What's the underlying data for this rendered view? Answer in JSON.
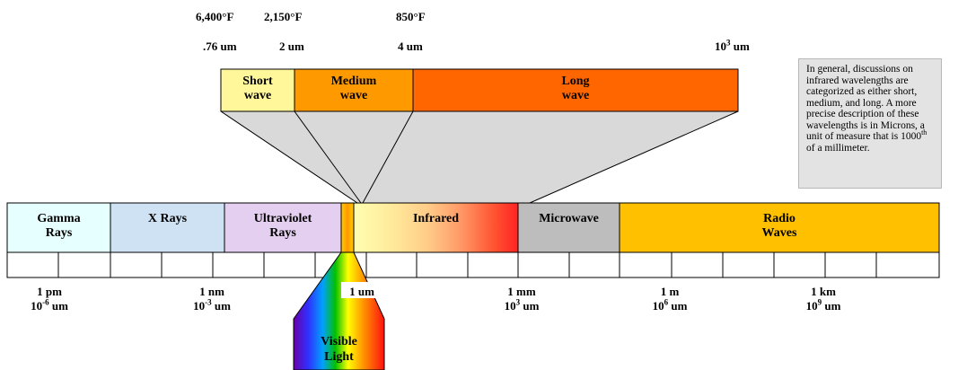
{
  "temperatures": {
    "t1": "6,400°F",
    "t2": "2,150°F",
    "t3": "850°F"
  },
  "wavelength_top": {
    "w1": ".76 um",
    "w2": "2 um",
    "w3": "4 um",
    "w4_base": "10",
    "w4_exp": "3",
    "w4_unit": " um"
  },
  "ir_bands": {
    "short": {
      "line1": "Short",
      "line2": "wave",
      "color": "#fff79a"
    },
    "medium": {
      "line1": "Medium",
      "line2": "wave",
      "color": "#ff9900"
    },
    "long": {
      "line1": "Long",
      "line2": "wave",
      "color": "#ff6600"
    }
  },
  "note": "In general, discussions on infrared wavelengths are categorized as either short, medium, and long.  A more precise description of these wavelengths is in Microns, a unit of measure that is 1000th of a millimeter.",
  "note_parts": {
    "before": "In general, discussions on infrared wavelengths are categorized as either short, medium, and long.  A more precise description of these wavelengths is in Microns, a unit of measure that is 1000",
    "sup": "th",
    "after": " of a millimeter."
  },
  "spectrum": {
    "gamma": {
      "line1": "Gamma",
      "line2": "Rays",
      "color": "#e6ffff"
    },
    "xrays": {
      "line1": "X Rays",
      "color": "#cfe2f3"
    },
    "uv": {
      "line1": "Ultraviolet",
      "line2": "Rays",
      "color": "#e4cff0"
    },
    "infrared": {
      "line1": "Infrared"
    },
    "microwave": {
      "line1": "Microwave",
      "color": "#bdbdbd"
    },
    "radio": {
      "line1": "Radio",
      "line2": "Waves",
      "color": "#ffc000"
    }
  },
  "scale": {
    "pm": {
      "line1": "1 pm",
      "line2_base": "10",
      "line2_exp": "-6",
      "line2_unit": " um"
    },
    "nm": {
      "line1": "1 nm",
      "line2_base": "10",
      "line2_exp": "-3",
      "line2_unit": " um"
    },
    "um": {
      "line1": "1 um"
    },
    "mm": {
      "line1": "1 mm",
      "line2_base": "10",
      "line2_exp": "3",
      "line2_unit": " um"
    },
    "m": {
      "line1": "1 m",
      "line2_base": "10",
      "line2_exp": "6",
      "line2_unit": " um"
    },
    "km": {
      "line1": "1 km",
      "line2_base": "10",
      "line2_exp": "9",
      "line2_unit": " um"
    }
  },
  "visible": {
    "line1": "Visible",
    "line2": "Light"
  }
}
